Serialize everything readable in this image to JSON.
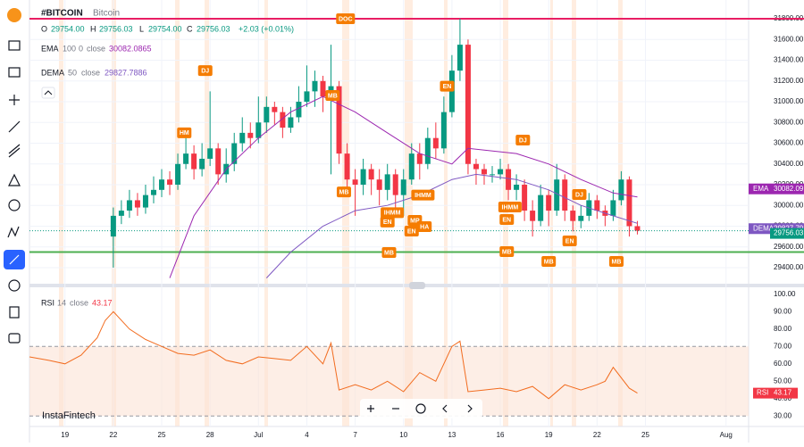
{
  "header": {
    "symbol": "#BITCOIN",
    "name": "Bitcoin",
    "ohlc": [
      {
        "label": "O",
        "value": "29754.00"
      },
      {
        "label": "H",
        "value": "29756.03"
      },
      {
        "label": "L",
        "value": "29754.00"
      },
      {
        "label": "C",
        "value": "29756.03"
      }
    ],
    "change": "+2.03 (+0.01%)"
  },
  "indicators": [
    {
      "params": [
        "100",
        "0",
        "close"
      ],
      "value": "30082.0865"
    },
    {
      "params": [
        "50",
        "close"
      ],
      "value": "29827.7886"
    }
  ],
  "rsi_params": [
    "14",
    "close"
  ],
  "watermark": "InstaFintech",
  "chart_data": [
    {
      "type": "candlestick",
      "up_color": "#089981",
      "down_color": "#f23645",
      "xlim": [
        -2.2,
        42.4
      ],
      "ylim": [
        29245,
        31938
      ],
      "yticks": [
        {
          "value": 29400,
          "label": "29400.00"
        },
        {
          "value": 29600,
          "label": "29600.00"
        },
        {
          "value": 29800,
          "label": "29800.00"
        },
        {
          "value": 30000,
          "label": "30000.00"
        },
        {
          "value": 30200,
          "label": "30200.00"
        },
        {
          "value": 30400,
          "label": "30400.00"
        },
        {
          "value": 30600,
          "label": "30600.00"
        },
        {
          "value": 30800,
          "label": "30800.00"
        },
        {
          "value": 31000,
          "label": "31000.00"
        },
        {
          "value": 31200,
          "label": "31200.00"
        },
        {
          "value": 31400,
          "label": "31400.00"
        },
        {
          "value": 31600,
          "label": "31600.00"
        },
        {
          "value": 31800,
          "label": "31800.00"
        }
      ],
      "x": [
        3,
        3.5,
        4,
        4.5,
        5,
        5.5,
        6,
        6.5,
        7,
        7.5,
        8,
        8.5,
        9,
        9.5,
        10,
        10.5,
        11,
        11.5,
        12,
        12.5,
        13,
        13.5,
        14,
        14.5,
        15,
        15.5,
        16,
        16.5,
        17,
        17.5,
        18,
        18.5,
        19,
        19.5,
        20,
        20.5,
        21,
        21.5,
        22,
        22.5,
        23,
        23.5,
        24,
        24.5,
        25,
        25.5,
        26,
        26.5,
        27,
        27.5,
        28,
        28.5,
        29,
        29.5,
        30,
        30.5,
        31,
        31.5,
        32,
        32.5,
        33,
        33.5,
        34,
        34.5,
        35,
        35.5
      ],
      "open": [
        29700,
        29900,
        29950,
        30050,
        29980,
        30100,
        30150,
        30250,
        30200,
        30400,
        30500,
        30350,
        30450,
        30550,
        30300,
        30400,
        30600,
        30700,
        30650,
        30800,
        30950,
        30900,
        30750,
        30850,
        31000,
        31100,
        31200,
        31050,
        31150,
        30500,
        30250,
        30200,
        30350,
        30250,
        30150,
        30300,
        30100,
        30250,
        30500,
        30400,
        30650,
        30550,
        30900,
        31300,
        31550,
        30400,
        30350,
        30300,
        30300,
        30350,
        30150,
        30200,
        29950,
        29850,
        30100,
        29950,
        30250,
        29950,
        29850,
        29900,
        30050,
        29950,
        29900,
        30050,
        30250,
        29800
      ],
      "high": [
        29980,
        30050,
        30150,
        30120,
        30200,
        30280,
        30350,
        30330,
        30500,
        30650,
        30580,
        30600,
        31100,
        30600,
        30550,
        30700,
        30850,
        30800,
        31050,
        31050,
        31000,
        30950,
        30950,
        31150,
        31350,
        31300,
        31250,
        31550,
        31200,
        30600,
        30350,
        30450,
        30400,
        30350,
        30400,
        30350,
        30350,
        30600,
        30600,
        30750,
        30800,
        31050,
        31450,
        31800,
        31600,
        30450,
        30400,
        30380,
        30450,
        30400,
        30300,
        30250,
        30050,
        30200,
        30150,
        30400,
        30300,
        30000,
        30000,
        30120,
        30100,
        30000,
        30150,
        30330,
        30280,
        29850
      ],
      "low": [
        29400,
        29820,
        29880,
        29900,
        29920,
        30020,
        30080,
        30100,
        30150,
        30350,
        30250,
        30280,
        30380,
        30200,
        30220,
        30330,
        30520,
        30550,
        30600,
        30700,
        30780,
        30650,
        30700,
        30800,
        30950,
        30950,
        30900,
        30300,
        30400,
        30100,
        29900,
        30100,
        30100,
        30000,
        30050,
        29950,
        29900,
        30200,
        30250,
        30350,
        30450,
        30500,
        30850,
        31200,
        30300,
        30200,
        30200,
        30220,
        30250,
        30050,
        30050,
        29850,
        29700,
        29800,
        29800,
        29900,
        29850,
        29750,
        29780,
        29850,
        29870,
        29800,
        29850,
        30000,
        29700,
        29720
      ],
      "close": [
        29900,
        29950,
        30050,
        29980,
        30100,
        30150,
        30250,
        30200,
        30400,
        30500,
        30350,
        30450,
        30550,
        30300,
        30400,
        30600,
        30700,
        30650,
        30800,
        30950,
        30900,
        30750,
        30850,
        31000,
        31100,
        31200,
        31050,
        31150,
        30500,
        30250,
        30200,
        30350,
        30250,
        30150,
        30300,
        30100,
        30250,
        30500,
        30400,
        30650,
        30550,
        30900,
        31300,
        31550,
        30400,
        30350,
        30300,
        30300,
        30350,
        30150,
        30200,
        29950,
        29850,
        30100,
        29950,
        30250,
        29950,
        29850,
        29900,
        30050,
        29950,
        29900,
        30050,
        30250,
        29800,
        29756.03
      ],
      "series": [
        {
          "name": "EMA",
          "color": "#9c27b0",
          "x": [
            6.5,
            8,
            10,
            12,
            14,
            16,
            18,
            20,
            22,
            24,
            25,
            28,
            30,
            32,
            34,
            35.5
          ],
          "values": [
            29300,
            29900,
            30350,
            30650,
            30900,
            31050,
            30900,
            30700,
            30500,
            30400,
            30550,
            30500,
            30400,
            30250,
            30120,
            30082.09
          ]
        },
        {
          "name": "DEMA",
          "color": "#7e57c2",
          "x": [
            12.5,
            14,
            16,
            18,
            20,
            22,
            24,
            25.5,
            28,
            30,
            32,
            34,
            35.5
          ],
          "values": [
            29300,
            29550,
            29800,
            29950,
            30000,
            30100,
            30250,
            30300,
            30250,
            30150,
            30000,
            29900,
            29827.79
          ]
        }
      ],
      "hlines": [
        {
          "value": 31800,
          "color": "#e91e63"
        },
        {
          "value": 29550,
          "color": "#4caf50"
        }
      ],
      "annotations": [
        {
          "text": "DOC",
          "x": 17.4,
          "y": 31800
        },
        {
          "text": "DJ",
          "x": 8.7,
          "y": 31300
        },
        {
          "text": "HM",
          "x": 7.4,
          "y": 30700
        },
        {
          "text": "MB",
          "x": 16.6,
          "y": 31060
        },
        {
          "text": "MB",
          "x": 17.3,
          "y": 30130
        },
        {
          "text": "EN",
          "x": 23.7,
          "y": 31150
        },
        {
          "text": "DJ",
          "x": 28.4,
          "y": 30630
        },
        {
          "text": "IHMM",
          "x": 20.3,
          "y": 29930
        },
        {
          "text": "EN",
          "x": 20,
          "y": 29840
        },
        {
          "text": "MB",
          "x": 20.1,
          "y": 29546
        },
        {
          "text": "IHMM",
          "x": 22.2,
          "y": 30100
        },
        {
          "text": "MP",
          "x": 21.7,
          "y": 29856
        },
        {
          "text": "HA",
          "x": 22.3,
          "y": 29796
        },
        {
          "text": "EN",
          "x": 21.5,
          "y": 29753
        },
        {
          "text": "IHMM",
          "x": 27.6,
          "y": 29985
        },
        {
          "text": "EN",
          "x": 27.4,
          "y": 29865
        },
        {
          "text": "MB",
          "x": 27.4,
          "y": 29555
        },
        {
          "text": "MB",
          "x": 30,
          "y": 29460
        },
        {
          "text": "DJ",
          "x": 31.9,
          "y": 30105
        },
        {
          "text": "EN",
          "x": 31.3,
          "y": 29658
        },
        {
          "text": "MB",
          "x": 34.2,
          "y": 29460
        }
      ]
    },
    {
      "type": "line",
      "xlim": [
        -2.2,
        42.4
      ],
      "ylim": [
        24,
        104
      ],
      "yticks": [
        {
          "value": 30,
          "label": "30.00"
        },
        {
          "value": 40,
          "label": "40.00"
        },
        {
          "value": 50,
          "label": "50.00"
        },
        {
          "value": 60,
          "label": "60.00"
        },
        {
          "value": 70,
          "label": "70.00"
        },
        {
          "value": 80,
          "label": "80.00"
        },
        {
          "value": 90,
          "label": "90.00"
        },
        {
          "value": 100,
          "label": "100.00"
        }
      ],
      "xticks": [
        {
          "value": 0,
          "label": "19"
        },
        {
          "value": 3,
          "label": "22"
        },
        {
          "value": 6,
          "label": "25"
        },
        {
          "value": 9,
          "label": "28"
        },
        {
          "value": 12,
          "label": "Jul"
        },
        {
          "value": 15,
          "label": "4"
        },
        {
          "value": 18,
          "label": "7"
        },
        {
          "value": 21,
          "label": "10"
        },
        {
          "value": 24,
          "label": "13"
        },
        {
          "value": 27,
          "label": "16"
        },
        {
          "value": 30,
          "label": "19"
        },
        {
          "value": 33,
          "label": "22"
        },
        {
          "value": 36,
          "label": "25"
        },
        {
          "value": 41,
          "label": "Aug"
        }
      ],
      "bands": [
        70,
        30
      ],
      "band_color": "#fbe3d6",
      "series": [
        {
          "name": "RSI",
          "color": "#f26c1f",
          "x": [
            -2.2,
            -1,
            0,
            1,
            2,
            2.5,
            3,
            4,
            5,
            6,
            7,
            8,
            9,
            10,
            11,
            12,
            13,
            14,
            15,
            16,
            16.5,
            17,
            18,
            19,
            20,
            21,
            22,
            23,
            24,
            24.5,
            25,
            26,
            27,
            28,
            29,
            30,
            31,
            32,
            33,
            33.5,
            34,
            35,
            35.5
          ],
          "values": [
            64,
            62,
            60,
            65,
            75,
            85,
            90,
            80,
            74,
            70,
            66,
            65,
            68,
            62,
            60,
            64,
            63,
            62,
            70,
            60,
            72,
            45,
            48,
            45,
            50,
            44,
            55,
            50,
            70,
            73,
            44,
            45,
            46,
            44,
            47,
            40,
            48,
            45,
            48,
            50,
            58,
            46,
            43.17
          ]
        }
      ]
    }
  ]
}
